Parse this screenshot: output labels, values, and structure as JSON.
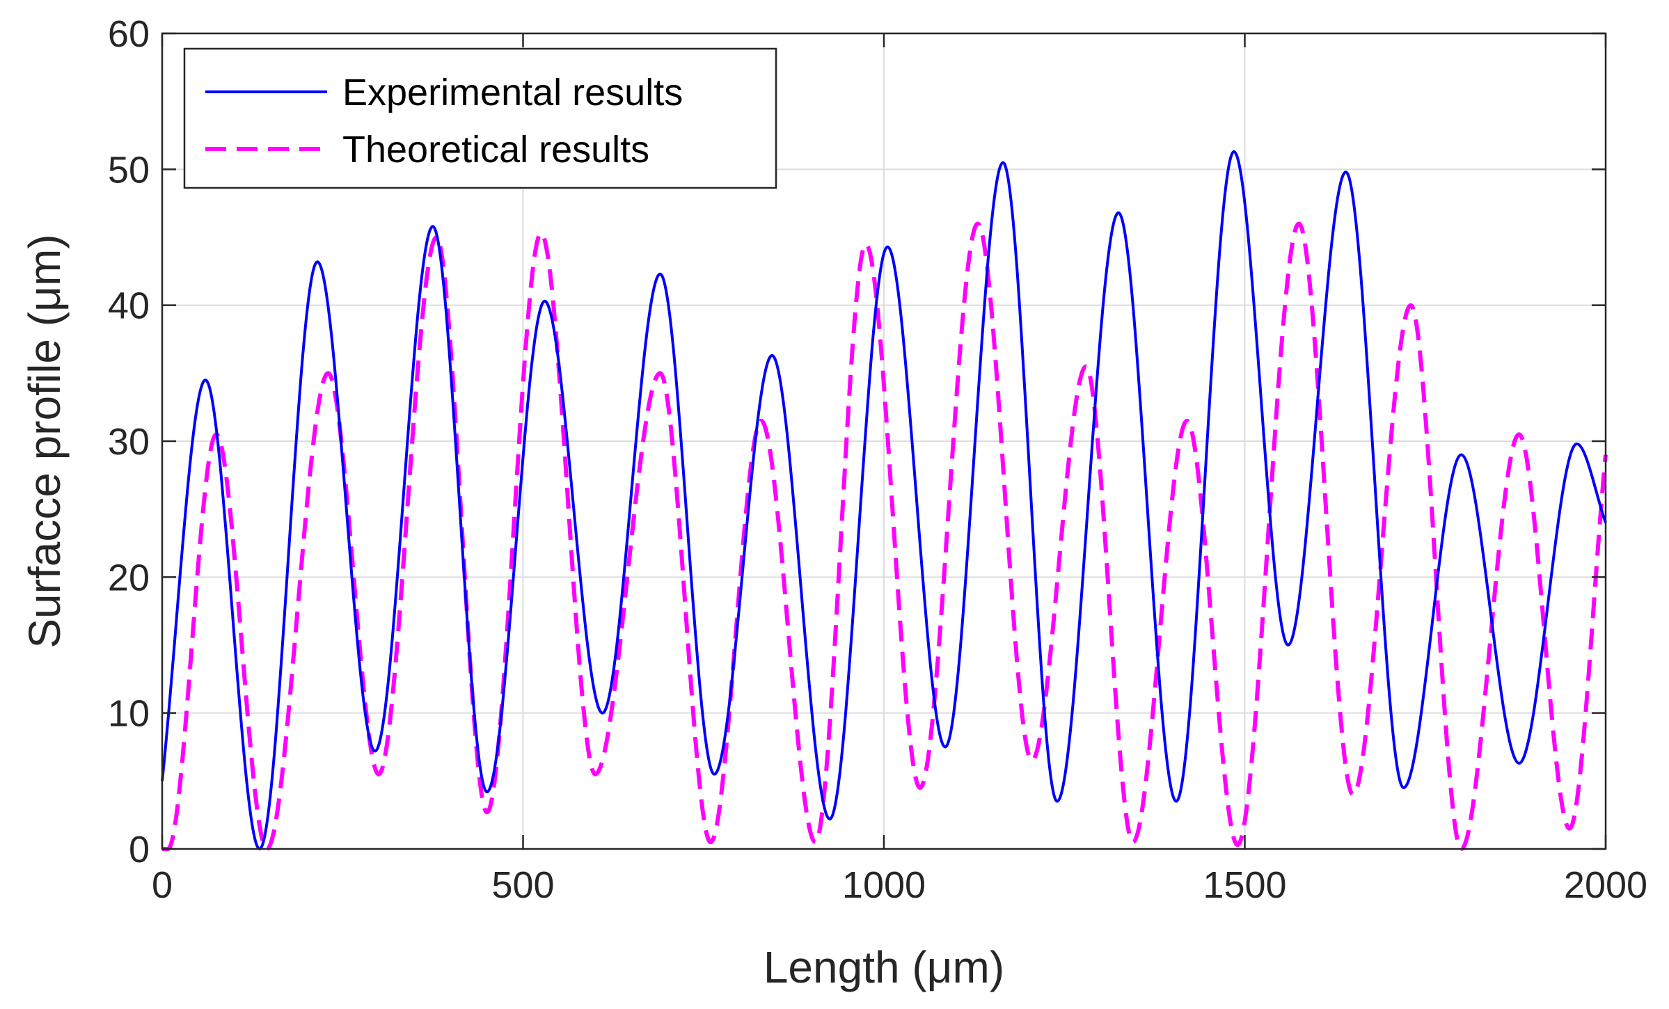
{
  "chart_data": {
    "type": "line",
    "xlabel": "Length (μm)",
    "ylabel": "Surfacce profile (μm)",
    "xlim": [
      0,
      2000
    ],
    "ylim": [
      0,
      60
    ],
    "xticks": [
      0,
      500,
      1000,
      1500,
      2000
    ],
    "yticks": [
      0,
      10,
      20,
      30,
      40,
      50,
      60
    ],
    "grid": true,
    "legend_position": "top-left",
    "series": [
      {
        "name": "Experimental results",
        "color": "#0000ff",
        "style": "solid",
        "x": [
          0,
          60,
          135,
          215,
          295,
          375,
          450,
          530,
          610,
          690,
          765,
          845,
          925,
          1005,
          1085,
          1165,
          1240,
          1325,
          1405,
          1485,
          1560,
          1640,
          1720,
          1800,
          1880,
          1960,
          2000
        ],
        "y": [
          5,
          34.5,
          0,
          43.2,
          7.2,
          45.8,
          4.2,
          40.3,
          10,
          42.3,
          5.5,
          36.3,
          2.2,
          44.3,
          7.5,
          50.5,
          3.5,
          46.8,
          3.5,
          51.3,
          15,
          49.8,
          4.5,
          29,
          6.3,
          29.8,
          24
        ]
      },
      {
        "name": "Theoretical results",
        "color": "#ff00ff",
        "style": "dashed",
        "x": [
          0,
          8,
          75,
          145,
          230,
          300,
          380,
          450,
          525,
          600,
          690,
          760,
          830,
          905,
          975,
          1050,
          1130,
          1205,
          1280,
          1345,
          1420,
          1490,
          1575,
          1650,
          1730,
          1800,
          1880,
          1950,
          2000
        ],
        "y": [
          0,
          0,
          30.5,
          0,
          35,
          5.5,
          45,
          2.7,
          45.3,
          5.5,
          35,
          0.5,
          31.5,
          0.5,
          44.5,
          4.5,
          46,
          6.5,
          35.5,
          0.5,
          31.5,
          0.3,
          46,
          4,
          40,
          0,
          30.5,
          1.5,
          29
        ]
      }
    ]
  }
}
